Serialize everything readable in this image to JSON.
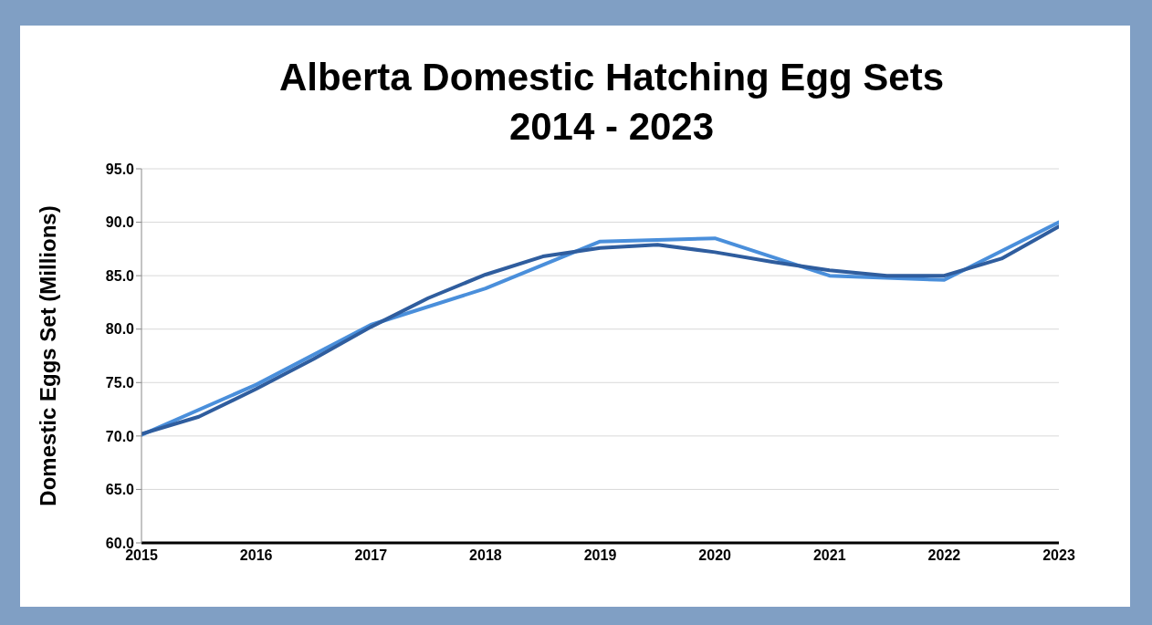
{
  "chart_data": {
    "type": "line",
    "title": "Alberta Domestic Hatching Egg Sets\n2014 - 2023",
    "ylabel": "Domestic Eggs Set (Millions)",
    "xlim": [
      2015,
      2023
    ],
    "xticks": [
      2015,
      2016,
      2017,
      2018,
      2019,
      2020,
      2021,
      2022,
      2023
    ],
    "ylim": [
      60,
      95
    ],
    "yticks": [
      {
        "value": 60,
        "label": "60.0"
      },
      {
        "value": 65,
        "label": "65.0"
      },
      {
        "value": 70,
        "label": "70.0"
      },
      {
        "value": 75,
        "label": "75.0"
      },
      {
        "value": 80,
        "label": "80.0"
      },
      {
        "value": 85,
        "label": "85.0"
      },
      {
        "value": 90,
        "label": "90.0"
      },
      {
        "value": 95,
        "label": "95.0"
      }
    ],
    "grid": "y",
    "series": [
      {
        "color": "#4a8fdb",
        "x": [
          2015,
          2016,
          2017,
          2018,
          2019,
          2020,
          2021,
          2022,
          2023
        ],
        "values": [
          70.1,
          74.8,
          80.4,
          83.8,
          88.2,
          88.5,
          85.0,
          84.6,
          90.0
        ]
      },
      {
        "color": "#2f5d9e",
        "x": [
          2015,
          2015.5,
          2016,
          2016.5,
          2017,
          2017.5,
          2018,
          2018.5,
          2019,
          2019.5,
          2020,
          2020.5,
          2021,
          2021.5,
          2022,
          2022.5,
          2023
        ],
        "values": [
          70.2,
          71.8,
          74.4,
          77.2,
          80.2,
          82.9,
          85.1,
          86.8,
          87.6,
          87.9,
          87.2,
          86.3,
          85.5,
          85.0,
          85.0,
          86.6,
          89.6
        ]
      }
    ]
  }
}
